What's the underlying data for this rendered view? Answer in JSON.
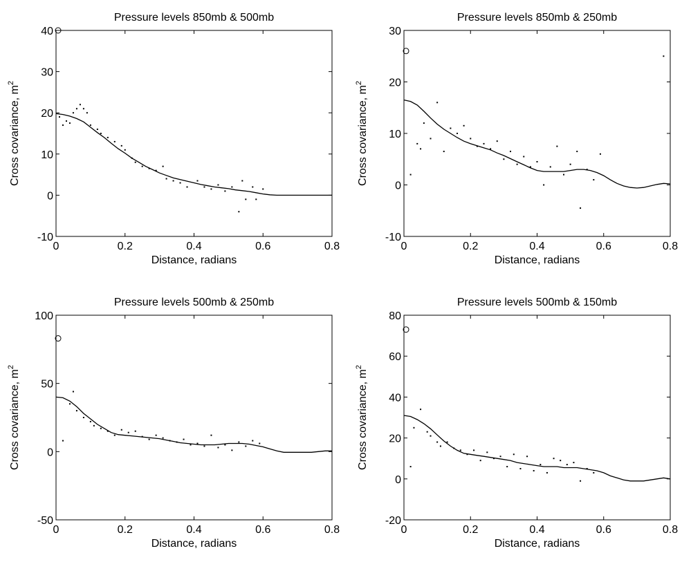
{
  "chart_data": [
    {
      "type": "scatter",
      "title": "Pressure levels 850mb & 500mb",
      "xlabel": "Distance, radians",
      "ylabel": "Cross covariance, m",
      "ylabel_superscript": "2",
      "xlim": [
        0,
        0.8
      ],
      "ylim": [
        -10,
        40
      ],
      "xticks": [
        "0",
        "0.2",
        "0.4",
        "0.6",
        "0.8"
      ],
      "yticks": [
        "-10",
        "0",
        "10",
        "20",
        "30",
        "40"
      ],
      "xtick_values": [
        0,
        0.2,
        0.4,
        0.6,
        0.8
      ],
      "ytick_values": [
        -10,
        0,
        10,
        20,
        30,
        40
      ],
      "circle": {
        "x": 0.0,
        "y": 40.0
      },
      "line": {
        "x": [
          0,
          0.02,
          0.04,
          0.06,
          0.08,
          0.1,
          0.12,
          0.14,
          0.16,
          0.18,
          0.2,
          0.22,
          0.24,
          0.26,
          0.28,
          0.3,
          0.32,
          0.34,
          0.36,
          0.38,
          0.4,
          0.42,
          0.44,
          0.46,
          0.48,
          0.5,
          0.52,
          0.54,
          0.56,
          0.58,
          0.6,
          0.62,
          0.64,
          0.66,
          0.68,
          0.7,
          0.72,
          0.74,
          0.76,
          0.78,
          0.8
        ],
        "y": [
          19.8,
          19.6,
          19.2,
          18.6,
          17.8,
          16.5,
          15.2,
          14.0,
          12.6,
          11.3,
          10.2,
          9.0,
          8.0,
          7.0,
          6.2,
          5.4,
          4.8,
          4.2,
          3.8,
          3.4,
          3.0,
          2.6,
          2.3,
          2.0,
          1.8,
          1.6,
          1.3,
          1.1,
          0.9,
          0.6,
          0.3,
          0.1,
          0.0,
          0.0,
          0.0,
          0.0,
          0.0,
          0.0,
          0.0,
          0.0,
          0.0
        ]
      },
      "points": {
        "x": [
          0.01,
          0.02,
          0.03,
          0.04,
          0.05,
          0.06,
          0.07,
          0.08,
          0.09,
          0.1,
          0.12,
          0.13,
          0.15,
          0.17,
          0.19,
          0.2,
          0.22,
          0.23,
          0.25,
          0.27,
          0.29,
          0.31,
          0.32,
          0.34,
          0.36,
          0.38,
          0.41,
          0.43,
          0.45,
          0.47,
          0.49,
          0.51,
          0.53,
          0.54,
          0.55,
          0.57,
          0.58,
          0.6
        ],
        "y": [
          19,
          17,
          18,
          17.5,
          20,
          21,
          22,
          21,
          20,
          17,
          16,
          15,
          14,
          13,
          12,
          11,
          9,
          8,
          7,
          6.5,
          6,
          7,
          4,
          3.5,
          3,
          2,
          3.5,
          2,
          1.5,
          2.5,
          1,
          2,
          -4,
          3.5,
          -1,
          2,
          -1,
          1.5
        ]
      }
    },
    {
      "type": "scatter",
      "title": "Pressure levels 850mb & 250mb",
      "xlabel": "Distance, radians",
      "ylabel": "Cross covariance, m",
      "ylabel_superscript": "2",
      "xlim": [
        0,
        0.8
      ],
      "ylim": [
        -10,
        30
      ],
      "xticks": [
        "0",
        "0.2",
        "0.4",
        "0.6",
        "0.8"
      ],
      "yticks": [
        "-10",
        "0",
        "10",
        "20",
        "30"
      ],
      "xtick_values": [
        0,
        0.2,
        0.4,
        0.6,
        0.8
      ],
      "ytick_values": [
        -10,
        0,
        10,
        20,
        30
      ],
      "circle": {
        "x": 0.0,
        "y": 26.0
      },
      "line": {
        "x": [
          0,
          0.02,
          0.04,
          0.06,
          0.08,
          0.1,
          0.12,
          0.14,
          0.16,
          0.18,
          0.2,
          0.22,
          0.24,
          0.26,
          0.28,
          0.3,
          0.32,
          0.34,
          0.36,
          0.38,
          0.4,
          0.42,
          0.44,
          0.46,
          0.48,
          0.5,
          0.52,
          0.54,
          0.56,
          0.58,
          0.6,
          0.62,
          0.64,
          0.66,
          0.68,
          0.7,
          0.72,
          0.74,
          0.76,
          0.78,
          0.8
        ],
        "y": [
          16.5,
          16.2,
          15.5,
          14.3,
          13.0,
          11.8,
          10.8,
          10.0,
          9.2,
          8.5,
          8.0,
          7.6,
          7.2,
          6.8,
          6.2,
          5.7,
          5.1,
          4.5,
          3.9,
          3.3,
          2.8,
          2.6,
          2.6,
          2.6,
          2.6,
          2.8,
          3.0,
          3.0,
          2.8,
          2.4,
          1.8,
          1.0,
          0.3,
          -0.2,
          -0.5,
          -0.6,
          -0.5,
          -0.2,
          0.1,
          0.3,
          0.2
        ]
      },
      "points": {
        "x": [
          0.02,
          0.04,
          0.05,
          0.06,
          0.08,
          0.1,
          0.12,
          0.14,
          0.16,
          0.18,
          0.2,
          0.22,
          0.24,
          0.26,
          0.28,
          0.3,
          0.32,
          0.34,
          0.36,
          0.38,
          0.4,
          0.42,
          0.44,
          0.46,
          0.48,
          0.5,
          0.52,
          0.53,
          0.55,
          0.57,
          0.59,
          0.78
        ],
        "y": [
          2,
          8,
          7,
          12,
          9,
          16,
          6.5,
          11,
          10,
          11.5,
          9,
          7.5,
          8,
          7,
          8.5,
          5,
          6.5,
          4,
          5.5,
          3.5,
          4.5,
          0,
          3.5,
          7.5,
          2,
          4,
          6.5,
          -4.5,
          3,
          1,
          6,
          25
        ]
      }
    },
    {
      "type": "scatter",
      "title": "Pressure levels 500mb & 250mb",
      "xlabel": "Distance, radians",
      "ylabel": "Cross covariance, m",
      "ylabel_superscript": "2",
      "xlim": [
        0,
        0.8
      ],
      "ylim": [
        -50,
        100
      ],
      "xticks": [
        "0",
        "0.2",
        "0.4",
        "0.6",
        "0.8"
      ],
      "yticks": [
        "-50",
        "0",
        "50",
        "100"
      ],
      "xtick_values": [
        0,
        0.2,
        0.4,
        0.6,
        0.8
      ],
      "ytick_values": [
        -50,
        0,
        50,
        100
      ],
      "circle": {
        "x": 0.0,
        "y": 83.0
      },
      "line": {
        "x": [
          0,
          0.02,
          0.04,
          0.06,
          0.08,
          0.1,
          0.12,
          0.14,
          0.16,
          0.18,
          0.2,
          0.22,
          0.24,
          0.26,
          0.28,
          0.3,
          0.32,
          0.34,
          0.36,
          0.38,
          0.4,
          0.42,
          0.44,
          0.46,
          0.48,
          0.5,
          0.52,
          0.54,
          0.56,
          0.58,
          0.6,
          0.62,
          0.64,
          0.66,
          0.68,
          0.7,
          0.72,
          0.74,
          0.76,
          0.78,
          0.8
        ],
        "y": [
          40,
          39.5,
          37,
          33,
          28,
          24,
          20,
          17,
          14,
          12.5,
          12,
          11.5,
          11,
          10.5,
          10,
          9.5,
          8.5,
          7.5,
          6.5,
          6,
          5.5,
          5,
          5,
          5,
          5.5,
          6,
          6,
          6,
          5.5,
          4.5,
          3.5,
          2,
          0.5,
          -0.5,
          -0.5,
          -0.5,
          -0.5,
          -0.5,
          0,
          0.5,
          0.5
        ]
      },
      "points": {
        "x": [
          0.02,
          0.04,
          0.05,
          0.06,
          0.08,
          0.1,
          0.11,
          0.13,
          0.15,
          0.17,
          0.19,
          0.21,
          0.23,
          0.25,
          0.27,
          0.29,
          0.31,
          0.33,
          0.35,
          0.37,
          0.39,
          0.41,
          0.43,
          0.45,
          0.47,
          0.49,
          0.51,
          0.53,
          0.55,
          0.57,
          0.59
        ],
        "y": [
          8,
          35,
          44,
          30,
          25,
          22,
          19,
          17,
          15,
          12,
          16,
          14,
          15,
          11,
          9,
          12,
          10,
          8,
          7,
          9,
          5,
          6,
          4,
          12,
          3,
          5,
          1,
          7,
          4,
          8,
          6
        ]
      }
    },
    {
      "type": "scatter",
      "title": "Pressure levels 500mb & 150mb",
      "xlabel": "Distance, radians",
      "ylabel": "Cross covariance, m",
      "ylabel_superscript": "2",
      "xlim": [
        0,
        0.8
      ],
      "ylim": [
        -20,
        80
      ],
      "xticks": [
        "0",
        "0.2",
        "0.4",
        "0.6",
        "0.8"
      ],
      "yticks": [
        "-20",
        "0",
        "20",
        "40",
        "60",
        "80"
      ],
      "xtick_values": [
        0,
        0.2,
        0.4,
        0.6,
        0.8
      ],
      "ytick_values": [
        -20,
        0,
        20,
        40,
        60,
        80
      ],
      "circle": {
        "x": 0.0,
        "y": 73.0
      },
      "line": {
        "x": [
          0,
          0.02,
          0.04,
          0.06,
          0.08,
          0.1,
          0.12,
          0.14,
          0.16,
          0.18,
          0.2,
          0.22,
          0.24,
          0.26,
          0.28,
          0.3,
          0.32,
          0.34,
          0.36,
          0.38,
          0.4,
          0.42,
          0.44,
          0.46,
          0.48,
          0.5,
          0.52,
          0.54,
          0.56,
          0.58,
          0.6,
          0.62,
          0.64,
          0.66,
          0.68,
          0.7,
          0.72,
          0.74,
          0.76,
          0.78,
          0.8
        ],
        "y": [
          31,
          30.5,
          29,
          27,
          24.5,
          21.5,
          18.5,
          16,
          14,
          12.5,
          12,
          11.5,
          11,
          10.5,
          10,
          9.5,
          9,
          8,
          7.5,
          7,
          6.5,
          6,
          6,
          6,
          5.5,
          5.5,
          5.5,
          5,
          4.5,
          4,
          3,
          1.5,
          0.5,
          -0.5,
          -1,
          -1,
          -1,
          -0.5,
          0,
          0.5,
          0
        ]
      },
      "points": {
        "x": [
          0.02,
          0.03,
          0.05,
          0.07,
          0.08,
          0.1,
          0.11,
          0.13,
          0.15,
          0.17,
          0.19,
          0.21,
          0.23,
          0.25,
          0.27,
          0.29,
          0.31,
          0.33,
          0.35,
          0.37,
          0.39,
          0.41,
          0.43,
          0.45,
          0.47,
          0.49,
          0.51,
          0.53,
          0.55,
          0.57
        ],
        "y": [
          6,
          25,
          34,
          23,
          21,
          18,
          16,
          18,
          15,
          14,
          12,
          14,
          9,
          13,
          10,
          11,
          6,
          12,
          5,
          11,
          4,
          7,
          3,
          10,
          9,
          7,
          8,
          -1,
          5,
          3
        ]
      }
    }
  ]
}
